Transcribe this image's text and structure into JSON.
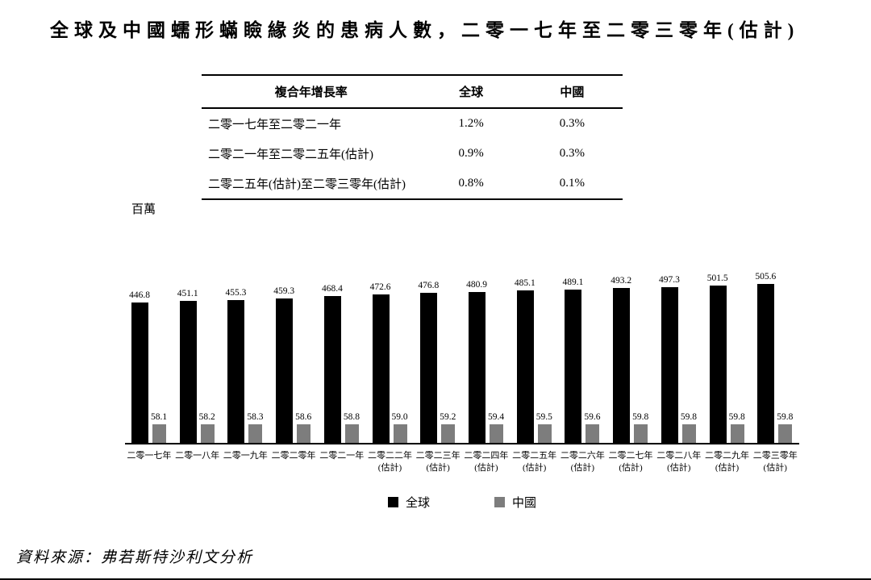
{
  "page": {
    "title": "全球及中國蠕形蟎瞼緣炎的患病人數，二零一七年至二零三零年(估計)",
    "source": "資料來源：弗若斯特沙利文分析"
  },
  "cagr_table": {
    "headers": [
      "複合年增長率",
      "全球",
      "中國"
    ],
    "rows": [
      {
        "period": "二零一七年至二零二一年",
        "global": "1.2%",
        "china": "0.3%"
      },
      {
        "period": "二零二一年至二零二五年(估計)",
        "global": "0.9%",
        "china": "0.3%"
      },
      {
        "period": "二零二五年(估計)至二零三零年(估計)",
        "global": "0.8%",
        "china": "0.1%"
      }
    ]
  },
  "chart_data": {
    "type": "bar",
    "title": "全球及中國蠕形蟎瞼緣炎的患病人數，二零一七年至二零三零年(估計)",
    "unit_label": "百萬",
    "xlabel": "",
    "ylabel": "百萬",
    "ylim": [
      0,
      555
    ],
    "grid": false,
    "legend_position": "bottom",
    "categories": [
      "二零一七年",
      "二零一八年",
      "二零一九年",
      "二零二零年",
      "二零二一年",
      "二零二二年\n(估計)",
      "二零二三年\n(估計)",
      "二零二四年\n(估計)",
      "二零二五年\n(估計)",
      "二零二六年\n(估計)",
      "二零二七年\n(估計)",
      "二零二八年\n(估計)",
      "二零二九年\n(估計)",
      "二零三零年\n(估計)"
    ],
    "series": [
      {
        "name": "全球",
        "color": "#000000",
        "values": [
          446.8,
          451.1,
          455.3,
          459.3,
          468.4,
          472.6,
          476.8,
          480.9,
          485.1,
          489.1,
          493.2,
          497.3,
          501.5,
          505.6
        ]
      },
      {
        "name": "中國",
        "color": "#7d7d7d",
        "values": [
          58.1,
          58.2,
          58.3,
          58.6,
          58.8,
          59.0,
          59.2,
          59.4,
          59.5,
          59.6,
          59.8,
          59.8,
          59.8,
          59.8
        ]
      }
    ]
  }
}
